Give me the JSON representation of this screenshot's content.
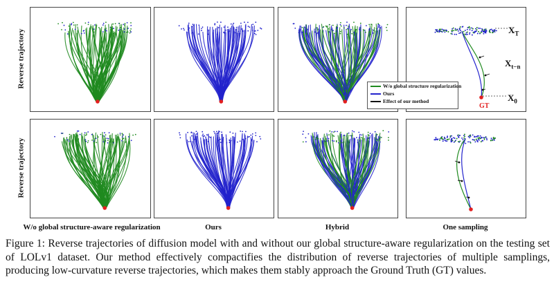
{
  "figure": {
    "row_label": "Reverse trajectory",
    "column_labels": [
      "W/o global structure-aware regularization",
      "Ours",
      "Hybrid",
      "One sampling"
    ],
    "legend": {
      "items": [
        {
          "label": "W/o global structure regularization",
          "color": "#1f8a1f"
        },
        {
          "label": "Ours",
          "color": "#2222cc"
        },
        {
          "label": "Effect of our method",
          "color": "#111111"
        }
      ]
    },
    "math_labels": {
      "xt_base": "X",
      "xt_sub": "T",
      "xtn_base": "X",
      "xtn_sub": "t−n",
      "x0_base": "X",
      "x0_sub": "0",
      "gt": "GT"
    },
    "colors": {
      "green": "#1f8a1f",
      "blue": "#2222cc",
      "red": "#e32020",
      "arrow": "#111111"
    }
  },
  "caption": {
    "text": "Figure 1: Reverse trajectories of diffusion model with and without our global structure-aware regularization on the testing set of LOLv1 dataset. Our method effectively compactifies the distribution of reverse trajectories of multiple samplings, producing low-curvature reverse trajectories, which makes them stably approach the Ground Truth (GT) values."
  }
}
